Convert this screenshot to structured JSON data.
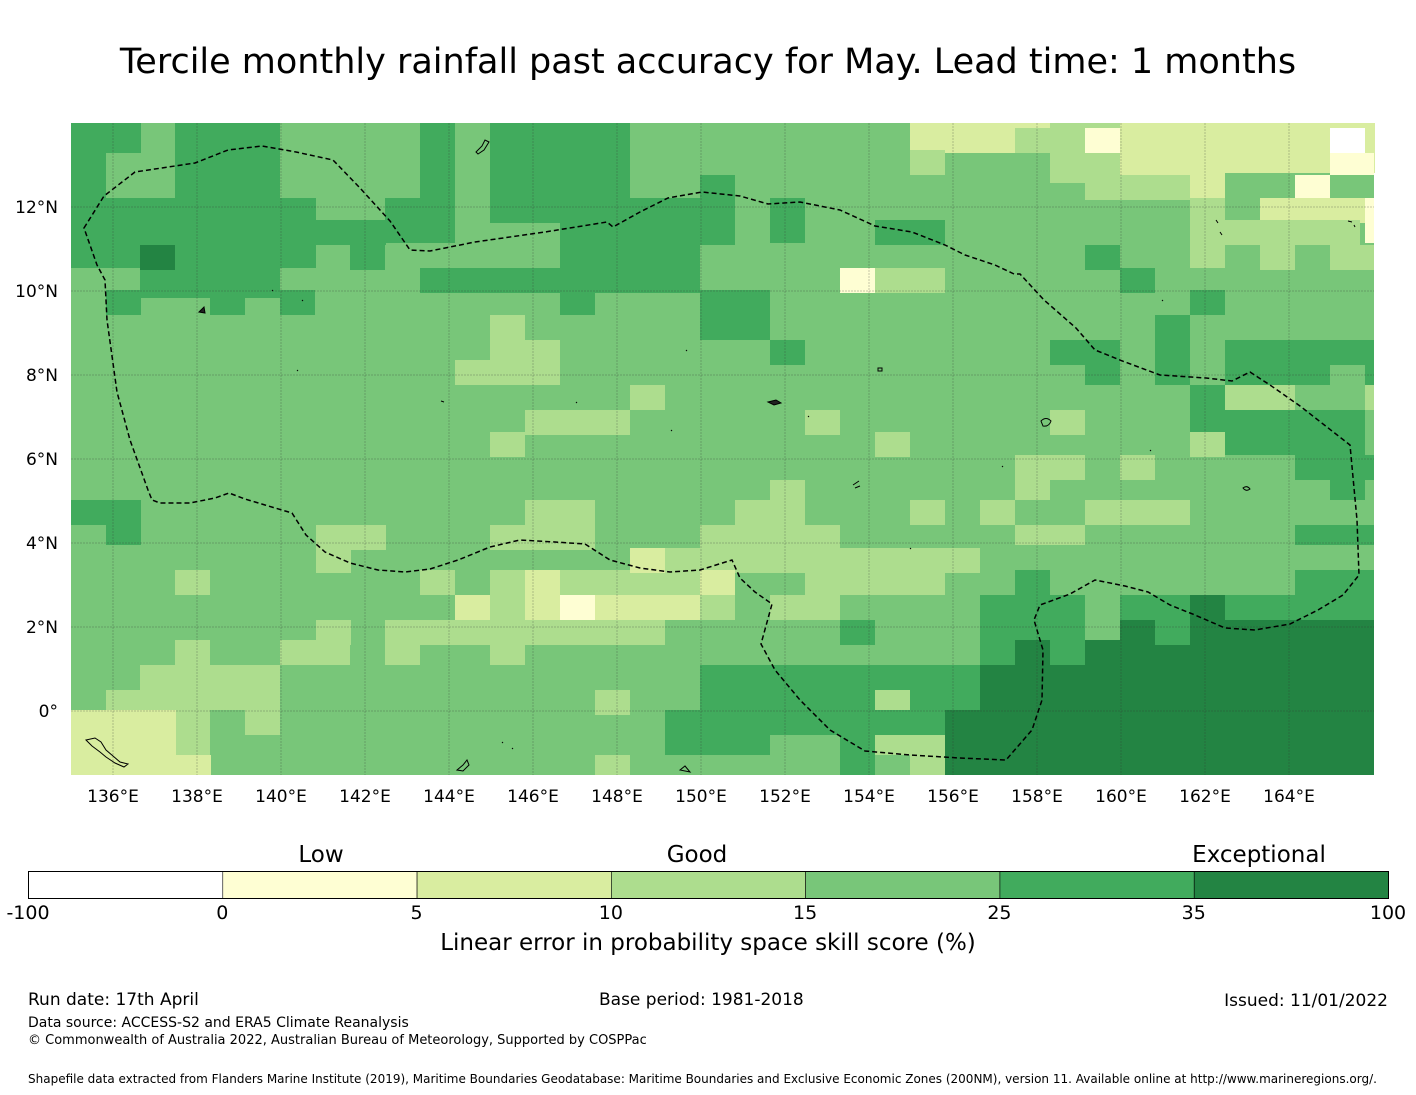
{
  "title": "Tercile monthly rainfall past accuracy for May. Lead time: 1 months",
  "map": {
    "lon_ticks": [
      "136°E",
      "138°E",
      "140°E",
      "142°E",
      "144°E",
      "146°E",
      "148°E",
      "150°E",
      "152°E",
      "154°E",
      "156°E",
      "158°E",
      "160°E",
      "162°E",
      "164°E"
    ],
    "lat_ticks": [
      "12°N",
      "10°N",
      "8°N",
      "6°N",
      "4°N",
      "2°N",
      "0°"
    ],
    "lon_range": [
      135,
      166
    ],
    "lat_range": [
      -1.5,
      14
    ],
    "grid_on": true,
    "boundary_style": "dashed",
    "colors": {
      "c1": "#fefed3",
      "c2": "#d9eda0",
      "c3": "#addd8e",
      "c4": "#78c679",
      "c5": "#41ab5d",
      "c6": "#238443"
    }
  },
  "colorbar": {
    "categories": [
      "Low",
      "Good",
      "Exceptional"
    ],
    "ticks": [
      "-100",
      "0",
      "5",
      "10",
      "15",
      "25",
      "35",
      "100"
    ],
    "colors": [
      "#ffffff",
      "#fefed3",
      "#d9eda0",
      "#addd8e",
      "#78c679",
      "#41ab5d",
      "#238443"
    ],
    "label": "Linear error in probability space skill score (%)"
  },
  "footer": {
    "run_date": "Run date: 17th April",
    "base_period": "Base period: 1981-2018",
    "issued": "Issued: 11/01/2022",
    "data_source": "Data source: ACCESS-S2 and ERA5 Climate Reanalysis",
    "copyright": "© Commonwealth of Australia 2022, Australian Bureau of Meteorology, Supported by COSPPac",
    "shapefile": "Shapefile data extracted from Flanders Marine Institute (2019), Maritime Boundaries Geodatabase: Maritime Boundaries and Exclusive Economic Zones (200NM), version 11. Available online at http://www.marineregions.org/."
  }
}
